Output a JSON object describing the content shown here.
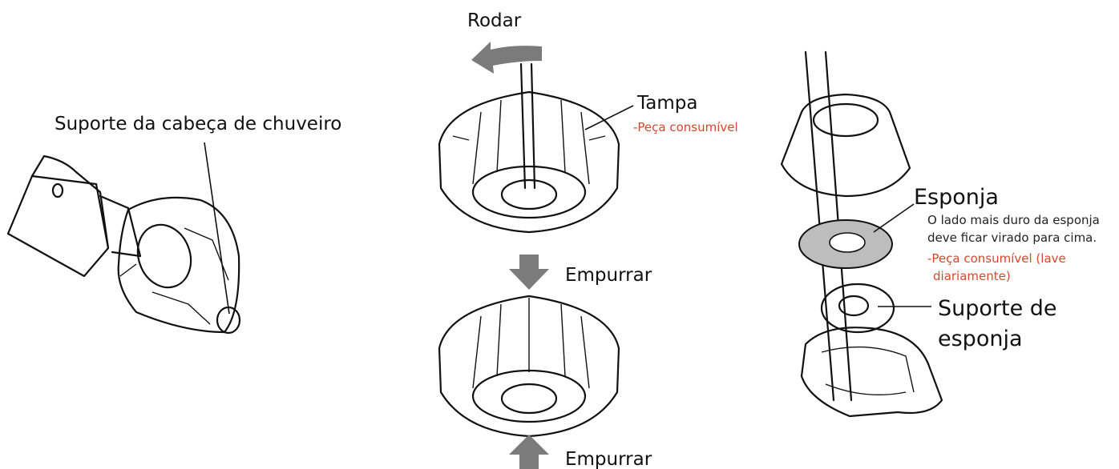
{
  "left": {
    "holder_label": "Suporte da cabeça de chuveiro"
  },
  "center": {
    "rotate_label": "Rodar",
    "cap_label": "Tampa",
    "cap_note": "-Peça consumível",
    "push_down_label": "Empurrar",
    "push_up_label": "Empurrar"
  },
  "right": {
    "sponge_label": "Esponja",
    "sponge_note": [
      "O lado mais duro da esponja",
      "deve ficar virado para cima."
    ],
    "sponge_consumable": [
      "-Peça consumível (lave",
      "diariamente)"
    ],
    "sponge_holder_label": [
      "Suporte de",
      "esponja"
    ]
  }
}
